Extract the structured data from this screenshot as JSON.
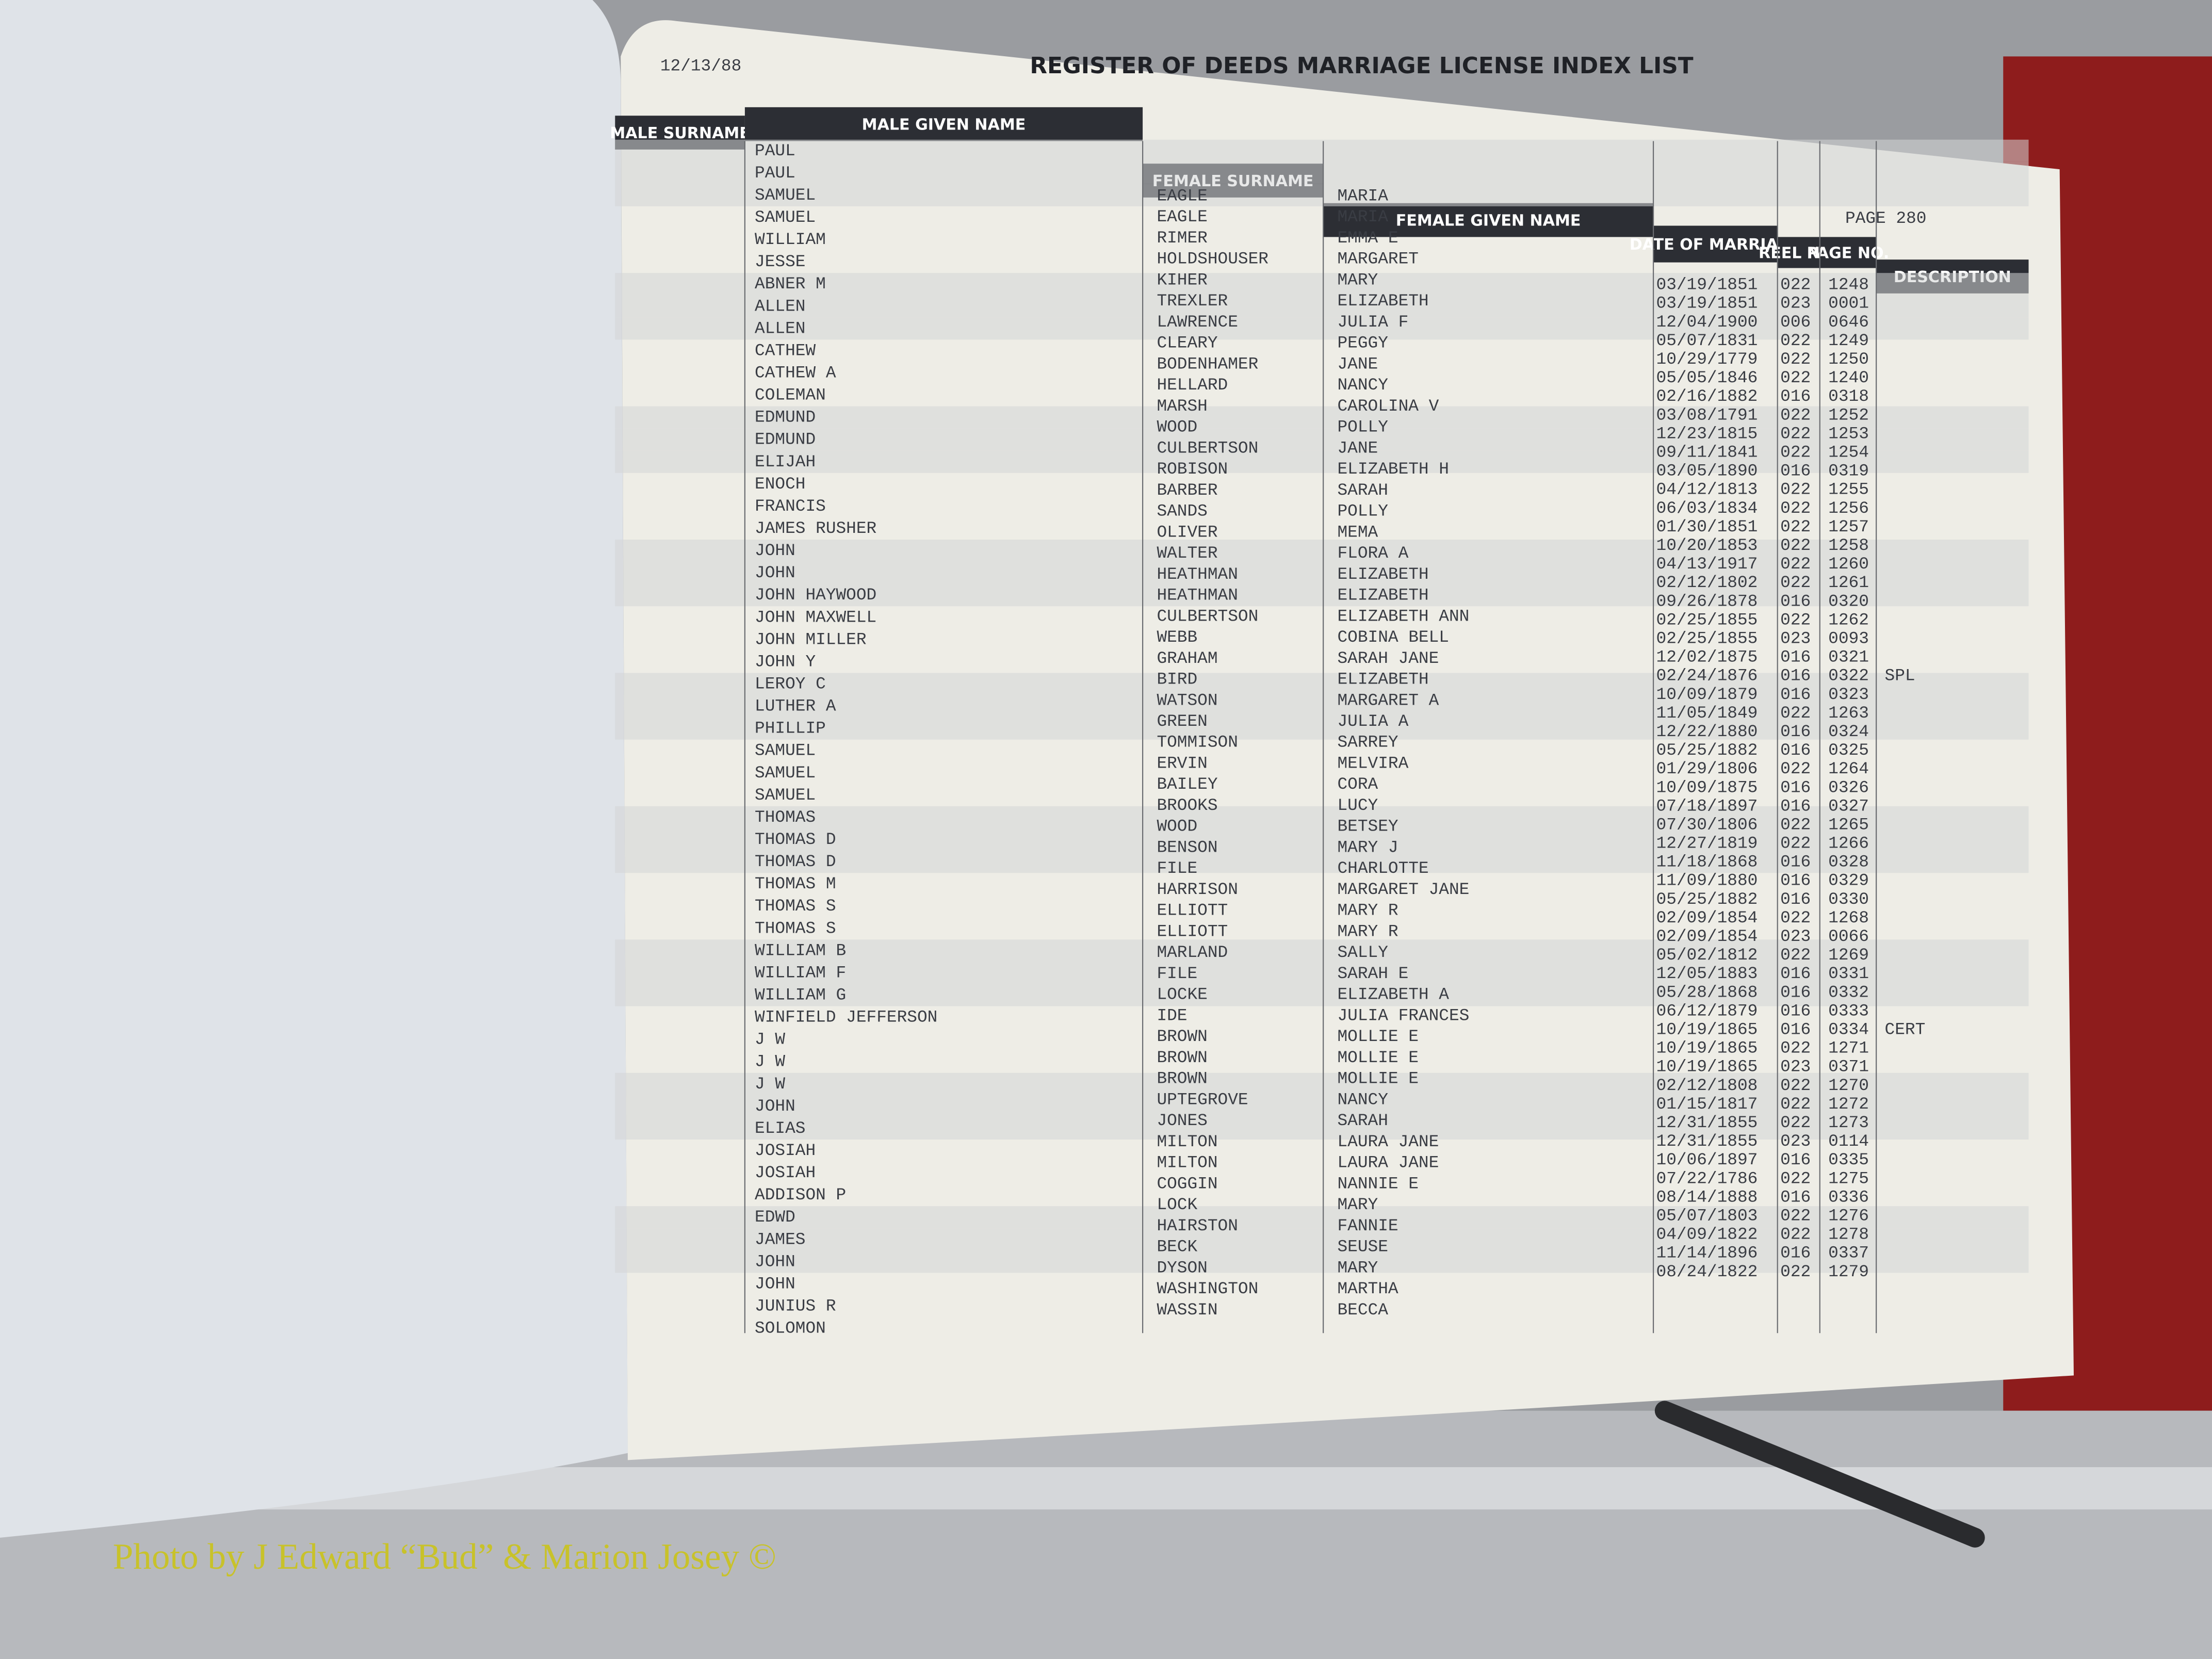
{
  "header": {
    "date": "12/13/88",
    "title": "REGISTER OF DEEDS MARRIAGE LICENSE INDEX LIST",
    "page": "PAGE 280"
  },
  "columns": [
    "MALE SURNAME",
    "MALE GIVEN NAME",
    "FEMALE SURNAME",
    "FEMALE GIVEN NAME",
    "DATE OF MARRIAGE",
    "REEL NO.",
    "PAGE NO.",
    "DESCRIPTION"
  ],
  "rows": [
    {
      "male_given_name": "PAUL",
      "female_surname": "EAGLE",
      "female_given_name": "MARIA",
      "date": "03/19/1851",
      "reel": "022",
      "page": "1248"
    },
    {
      "male_given_name": "PAUL",
      "female_surname": "EAGLE",
      "female_given_name": "MARIA",
      "date": "03/19/1851",
      "reel": "023",
      "page": "0001"
    },
    {
      "male_given_name": "SAMUEL",
      "female_surname": "RIMER",
      "female_given_name": "EMMA E",
      "date": "12/04/1900",
      "reel": "006",
      "page": "0646"
    },
    {
      "male_given_name": "SAMUEL",
      "female_surname": "HOLDSHOUSER",
      "female_given_name": "MARGARET",
      "date": "05/07/1831",
      "reel": "022",
      "page": "1249"
    },
    {
      "male_given_name": "WILLIAM",
      "female_surname": "KIHER",
      "female_given_name": "MARY",
      "date": "10/29/1779",
      "reel": "022",
      "page": "1250"
    },
    {
      "male_given_name": "JESSE",
      "female_surname": "TREXLER",
      "female_given_name": "ELIZABETH",
      "date": "05/05/1846",
      "reel": "022",
      "page": "1240"
    },
    {
      "male_given_name": "ABNER M",
      "female_surname": "LAWRENCE",
      "female_given_name": "JULIA F",
      "date": "02/16/1882",
      "reel": "016",
      "page": "0318"
    },
    {
      "male_given_name": "ALLEN",
      "female_surname": "CLEARY",
      "female_given_name": "PEGGY",
      "date": "03/08/1791",
      "reel": "022",
      "page": "1252"
    },
    {
      "male_given_name": "ALLEN",
      "female_surname": "BODENHAMER",
      "female_given_name": "JANE",
      "date": "12/23/1815",
      "reel": "022",
      "page": "1253"
    },
    {
      "male_given_name": "CATHEW",
      "female_surname": "HELLARD",
      "female_given_name": "NANCY",
      "date": "09/11/1841",
      "reel": "022",
      "page": "1254"
    },
    {
      "male_given_name": "CATHEW A",
      "female_surname": "MARSH",
      "female_given_name": "CAROLINA V",
      "date": "03/05/1890",
      "reel": "016",
      "page": "0319"
    },
    {
      "male_given_name": "COLEMAN",
      "female_surname": "WOOD",
      "female_given_name": "POLLY",
      "date": "04/12/1813",
      "reel": "022",
      "page": "1255"
    },
    {
      "male_given_name": "EDMUND",
      "female_surname": "CULBERTSON",
      "female_given_name": "JANE",
      "date": "06/03/1834",
      "reel": "022",
      "page": "1256"
    },
    {
      "male_given_name": "EDMUND",
      "female_surname": "ROBISON",
      "female_given_name": "ELIZABETH H",
      "date": "01/30/1851",
      "reel": "022",
      "page": "1257"
    },
    {
      "male_given_name": "ELIJAH",
      "female_surname": "BARBER",
      "female_given_name": "SARAH",
      "date": "10/20/1853",
      "reel": "022",
      "page": "1258"
    },
    {
      "male_given_name": "ENOCH",
      "female_surname": "SANDS",
      "female_given_name": "POLLY",
      "date": "04/13/1917",
      "reel": "022",
      "page": "1260"
    },
    {
      "male_given_name": "FRANCIS",
      "female_surname": "OLIVER",
      "female_given_name": "MEMA",
      "date": "02/12/1802",
      "reel": "022",
      "page": "1261"
    },
    {
      "male_given_name": "JAMES RUSHER",
      "female_surname": "WALTER",
      "female_given_name": "FLORA A",
      "date": "09/26/1878",
      "reel": "016",
      "page": "0320"
    },
    {
      "male_given_name": "JOHN",
      "female_surname": "HEATHMAN",
      "female_given_name": "ELIZABETH",
      "date": "02/25/1855",
      "reel": "022",
      "page": "1262"
    },
    {
      "male_given_name": "JOHN",
      "female_surname": "HEATHMAN",
      "female_given_name": "ELIZABETH",
      "date": "02/25/1855",
      "reel": "023",
      "page": "0093"
    },
    {
      "male_given_name": "JOHN HAYWOOD",
      "female_surname": "CULBERTSON",
      "female_given_name": "ELIZABETH ANN",
      "date": "12/02/1875",
      "reel": "016",
      "page": "0321"
    },
    {
      "male_given_name": "JOHN MAXWELL",
      "female_surname": "WEBB",
      "female_given_name": "COBINA BELL",
      "date": "02/24/1876",
      "reel": "016",
      "page": "0322",
      "description": "SPL"
    },
    {
      "male_given_name": "JOHN MILLER",
      "female_surname": "GRAHAM",
      "female_given_name": "SARAH JANE",
      "date": "10/09/1879",
      "reel": "016",
      "page": "0323"
    },
    {
      "male_given_name": "JOHN Y",
      "female_surname": "BIRD",
      "female_given_name": "ELIZABETH",
      "date": "11/05/1849",
      "reel": "022",
      "page": "1263"
    },
    {
      "male_given_name": "LEROY C",
      "female_surname": "WATSON",
      "female_given_name": "MARGARET A",
      "date": "12/22/1880",
      "reel": "016",
      "page": "0324"
    },
    {
      "male_given_name": "LUTHER A",
      "female_surname": "GREEN",
      "female_given_name": "JULIA A",
      "date": "05/25/1882",
      "reel": "016",
      "page": "0325"
    },
    {
      "male_given_name": "PHILLIP",
      "female_surname": "TOMMISON",
      "female_given_name": "SARREY",
      "date": "01/29/1806",
      "reel": "022",
      "page": "1264"
    },
    {
      "male_given_name": "SAMUEL",
      "female_surname": "ERVIN",
      "female_given_name": "MELVIRA",
      "date": "10/09/1875",
      "reel": "016",
      "page": "0326"
    },
    {
      "male_given_name": "SAMUEL",
      "female_surname": "BAILEY",
      "female_given_name": "CORA",
      "date": "07/18/1897",
      "reel": "016",
      "page": "0327"
    },
    {
      "male_given_name": "SAMUEL",
      "female_surname": "BROOKS",
      "female_given_name": "LUCY",
      "date": "07/30/1806",
      "reel": "022",
      "page": "1265"
    },
    {
      "male_given_name": "THOMAS",
      "female_surname": "WOOD",
      "female_given_name": "BETSEY",
      "date": "12/27/1819",
      "reel": "022",
      "page": "1266"
    },
    {
      "male_given_name": "THOMAS D",
      "female_surname": "BENSON",
      "female_given_name": "MARY J",
      "date": "11/18/1868",
      "reel": "016",
      "page": "0328"
    },
    {
      "male_given_name": "THOMAS D",
      "female_surname": "FILE",
      "female_given_name": "CHARLOTTE",
      "date": "11/09/1880",
      "reel": "016",
      "page": "0329"
    },
    {
      "male_given_name": "THOMAS M",
      "female_surname": "HARRISON",
      "female_given_name": "MARGARET JANE",
      "date": "05/25/1882",
      "reel": "016",
      "page": "0330"
    },
    {
      "male_given_name": "THOMAS S",
      "female_surname": "ELLIOTT",
      "female_given_name": "MARY R",
      "date": "02/09/1854",
      "reel": "022",
      "page": "1268"
    },
    {
      "male_given_name": "THOMAS S",
      "female_surname": "ELLIOTT",
      "female_given_name": "MARY R",
      "date": "02/09/1854",
      "reel": "023",
      "page": "0066"
    },
    {
      "male_given_name": "WILLIAM B",
      "female_surname": "MARLAND",
      "female_given_name": "SALLY",
      "date": "05/02/1812",
      "reel": "022",
      "page": "1269"
    },
    {
      "male_given_name": "WILLIAM F",
      "female_surname": "FILE",
      "female_given_name": "SARAH E",
      "date": "12/05/1883",
      "reel": "016",
      "page": "0331"
    },
    {
      "male_given_name": "WILLIAM G",
      "female_surname": "LOCKE",
      "female_given_name": "ELIZABETH A",
      "date": "05/28/1868",
      "reel": "016",
      "page": "0332"
    },
    {
      "male_given_name": "WINFIELD JEFFERSON",
      "female_surname": "IDE",
      "female_given_name": "JULIA FRANCES",
      "date": "06/12/1879",
      "reel": "016",
      "page": "0333"
    },
    {
      "male_given_name": "J W",
      "female_surname": "BROWN",
      "female_given_name": "MOLLIE E",
      "date": "10/19/1865",
      "reel": "016",
      "page": "0334",
      "description": "CERT"
    },
    {
      "male_given_name": "J W",
      "female_surname": "BROWN",
      "female_given_name": "MOLLIE E",
      "date": "10/19/1865",
      "reel": "022",
      "page": "1271"
    },
    {
      "male_given_name": "J W",
      "female_surname": "BROWN",
      "female_given_name": "MOLLIE E",
      "date": "10/19/1865",
      "reel": "023",
      "page": "0371"
    },
    {
      "male_given_name": "JOHN",
      "female_surname": "UPTEGROVE",
      "female_given_name": "NANCY",
      "date": "02/12/1808",
      "reel": "022",
      "page": "1270"
    },
    {
      "male_given_name": "ELIAS",
      "female_surname": "JONES",
      "female_given_name": "SARAH",
      "date": "01/15/1817",
      "reel": "022",
      "page": "1272"
    },
    {
      "male_given_name": "JOSIAH",
      "female_surname": "MILTON",
      "female_given_name": "LAURA JANE",
      "date": "12/31/1855",
      "reel": "022",
      "page": "1273"
    },
    {
      "male_given_name": "JOSIAH",
      "female_surname": "MILTON",
      "female_given_name": "LAURA JANE",
      "date": "12/31/1855",
      "reel": "023",
      "page": "0114"
    },
    {
      "male_given_name": "ADDISON P",
      "female_surname": "COGGIN",
      "female_given_name": "NANNIE E",
      "date": "10/06/1897",
      "reel": "016",
      "page": "0335"
    },
    {
      "male_given_name": "EDWD",
      "female_surname": "LOCK",
      "female_given_name": "MARY",
      "date": "07/22/1786",
      "reel": "022",
      "page": "1275"
    },
    {
      "male_given_name": "JAMES",
      "female_surname": "HAIRSTON",
      "female_given_name": "FANNIE",
      "date": "08/14/1888",
      "reel": "016",
      "page": "0336"
    },
    {
      "male_given_name": "JOHN",
      "female_surname": "BECK",
      "female_given_name": "SEUSE",
      "date": "05/07/1803",
      "reel": "022",
      "page": "1276"
    },
    {
      "male_given_name": "JOHN",
      "female_surname": "DYSON",
      "female_given_name": "MARY",
      "date": "04/09/1822",
      "reel": "022",
      "page": "1278"
    },
    {
      "male_given_name": "JUNIUS R",
      "female_surname": "WASHINGTON",
      "female_given_name": "MARTHA",
      "date": "11/14/1896",
      "reel": "016",
      "page": "0337"
    },
    {
      "male_given_name": "SOLOMON",
      "female_surname": "WASSIN",
      "female_given_name": "BECCA",
      "date": "08/24/1822",
      "reel": "022",
      "page": "1279"
    }
  ],
  "footer": {
    "credit": "Photo by J Edward “Bud” & Marion Josey ©"
  }
}
